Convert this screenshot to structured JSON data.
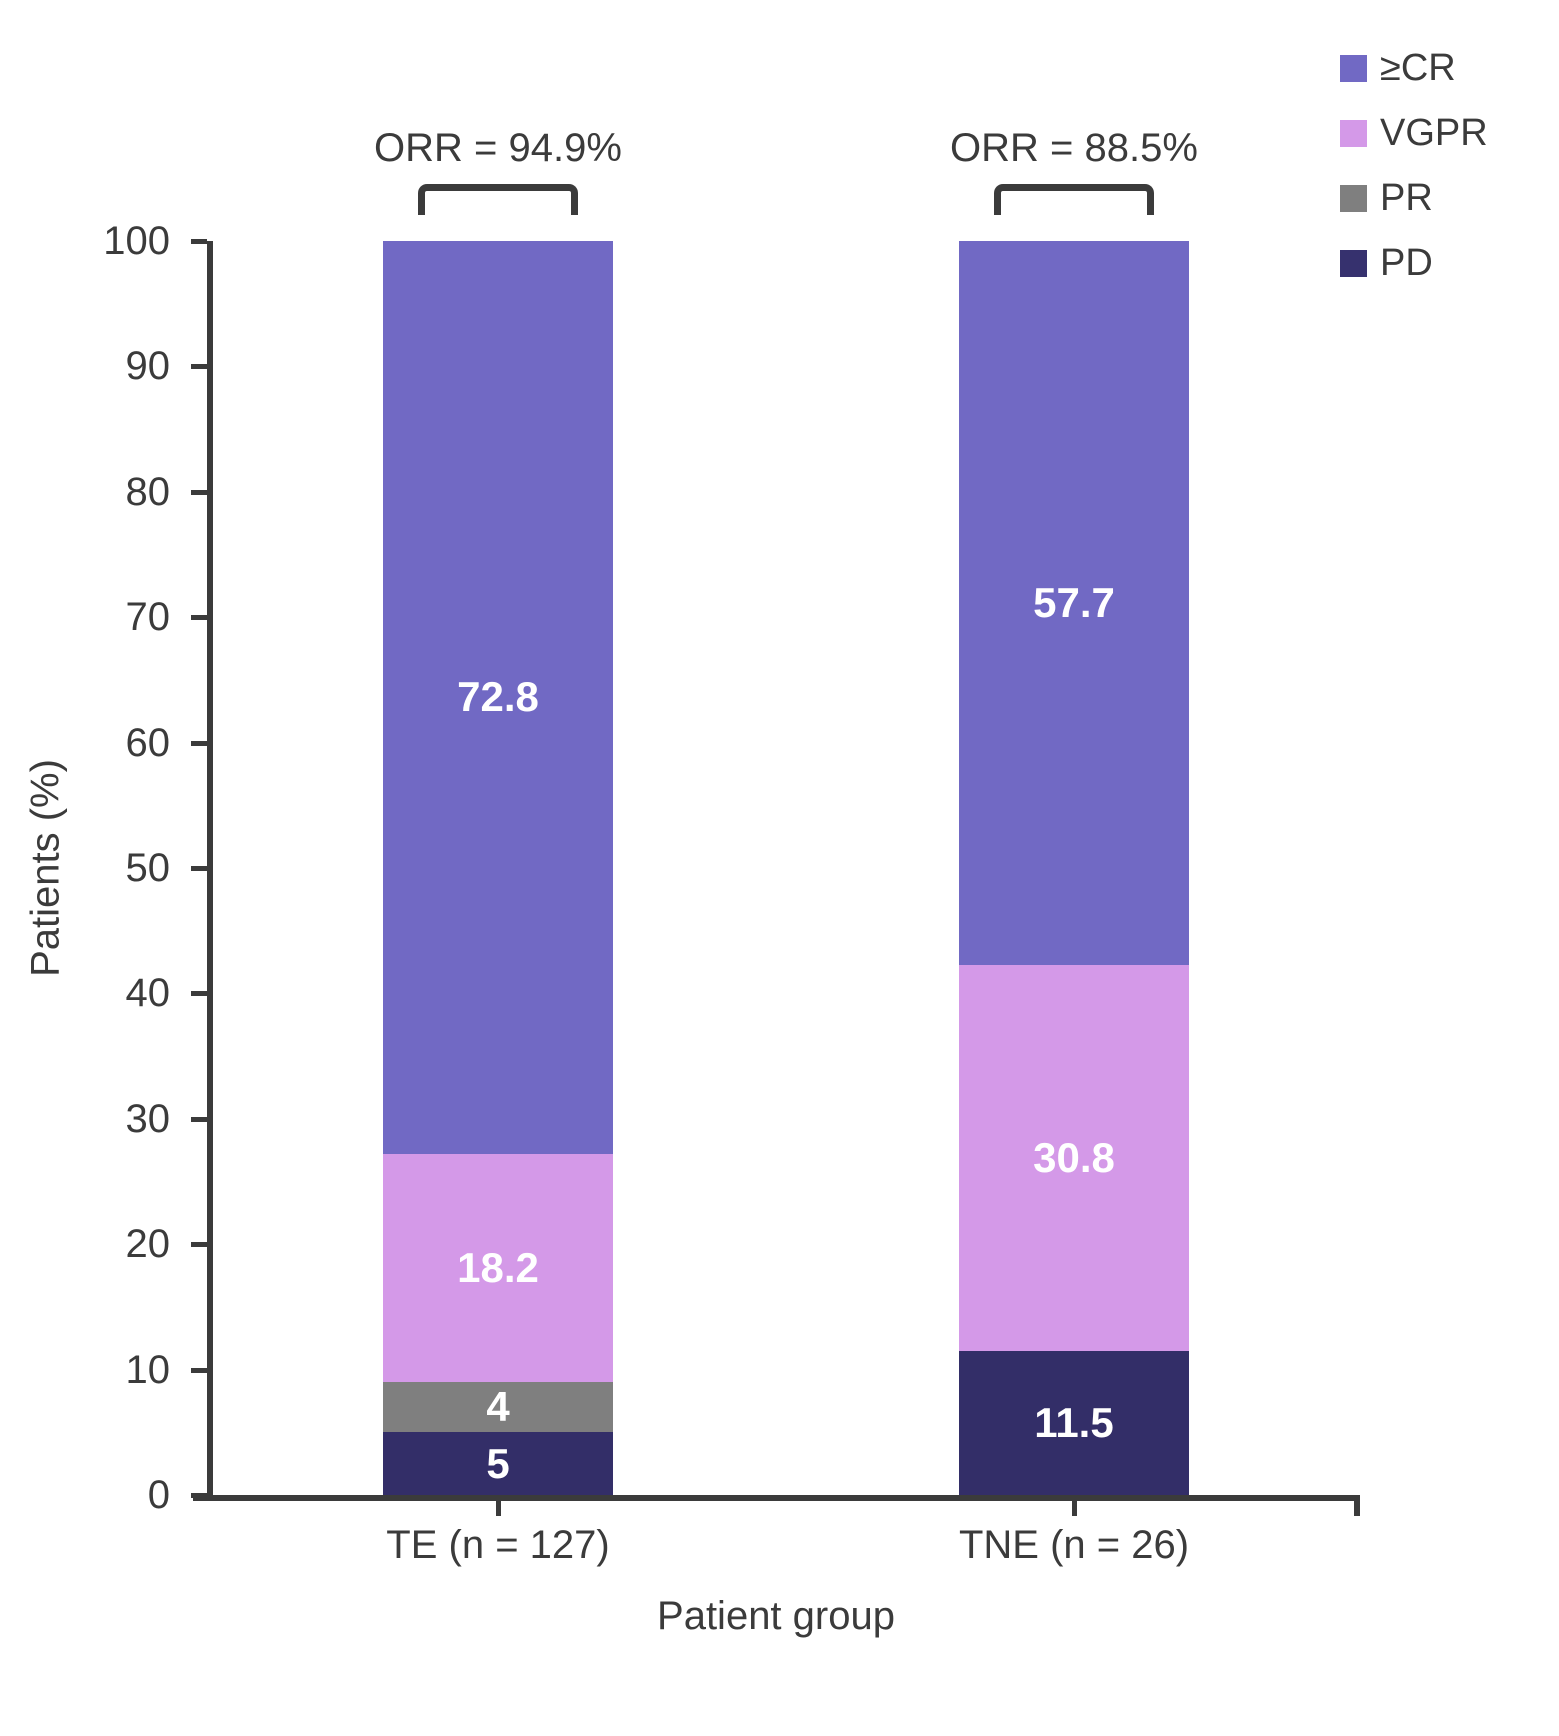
{
  "figure": {
    "background": "#FFFFFF",
    "axis_color": "#3B3B3B",
    "text_color": "#3B3B3B",
    "bar_value_text_color": "#FFFFFF"
  },
  "chart_data": {
    "type": "bar",
    "variant": "stacked-vertical",
    "title": "",
    "xlabel": "Patient group",
    "ylabel": "Patients (%)",
    "ylim": [
      0,
      100
    ],
    "ytick_step": 10,
    "grid": false,
    "categories": [
      "TE (n = 127)",
      "TNE (n = 26)"
    ],
    "series": [
      {
        "name": "PD",
        "color": "#332E68",
        "values": [
          5,
          11.5
        ],
        "labels": [
          "5",
          "11.5"
        ]
      },
      {
        "name": "PR",
        "color": "#7F7F7F",
        "values": [
          4,
          0
        ],
        "labels": [
          "4",
          ""
        ]
      },
      {
        "name": "VGPR",
        "color": "#D499E8",
        "values": [
          18.2,
          30.8
        ],
        "labels": [
          "18.2",
          "30.8"
        ]
      },
      {
        "name": "≥CR",
        "color": "#7169C4",
        "values": [
          72.8,
          57.7
        ],
        "labels": [
          "72.8",
          "57.7"
        ]
      }
    ],
    "annotations": [
      {
        "text": "ORR = 94.9%",
        "category_index": 0
      },
      {
        "text": "ORR = 88.5%",
        "category_index": 1
      }
    ],
    "legend": {
      "position": "top-right",
      "entries": [
        {
          "label": "≥CR",
          "color": "#7169C4"
        },
        {
          "label": "VGPR",
          "color": "#D499E8"
        },
        {
          "label": "PR",
          "color": "#7F7F7F"
        },
        {
          "label": "PD",
          "color": "#36316E"
        }
      ]
    }
  }
}
